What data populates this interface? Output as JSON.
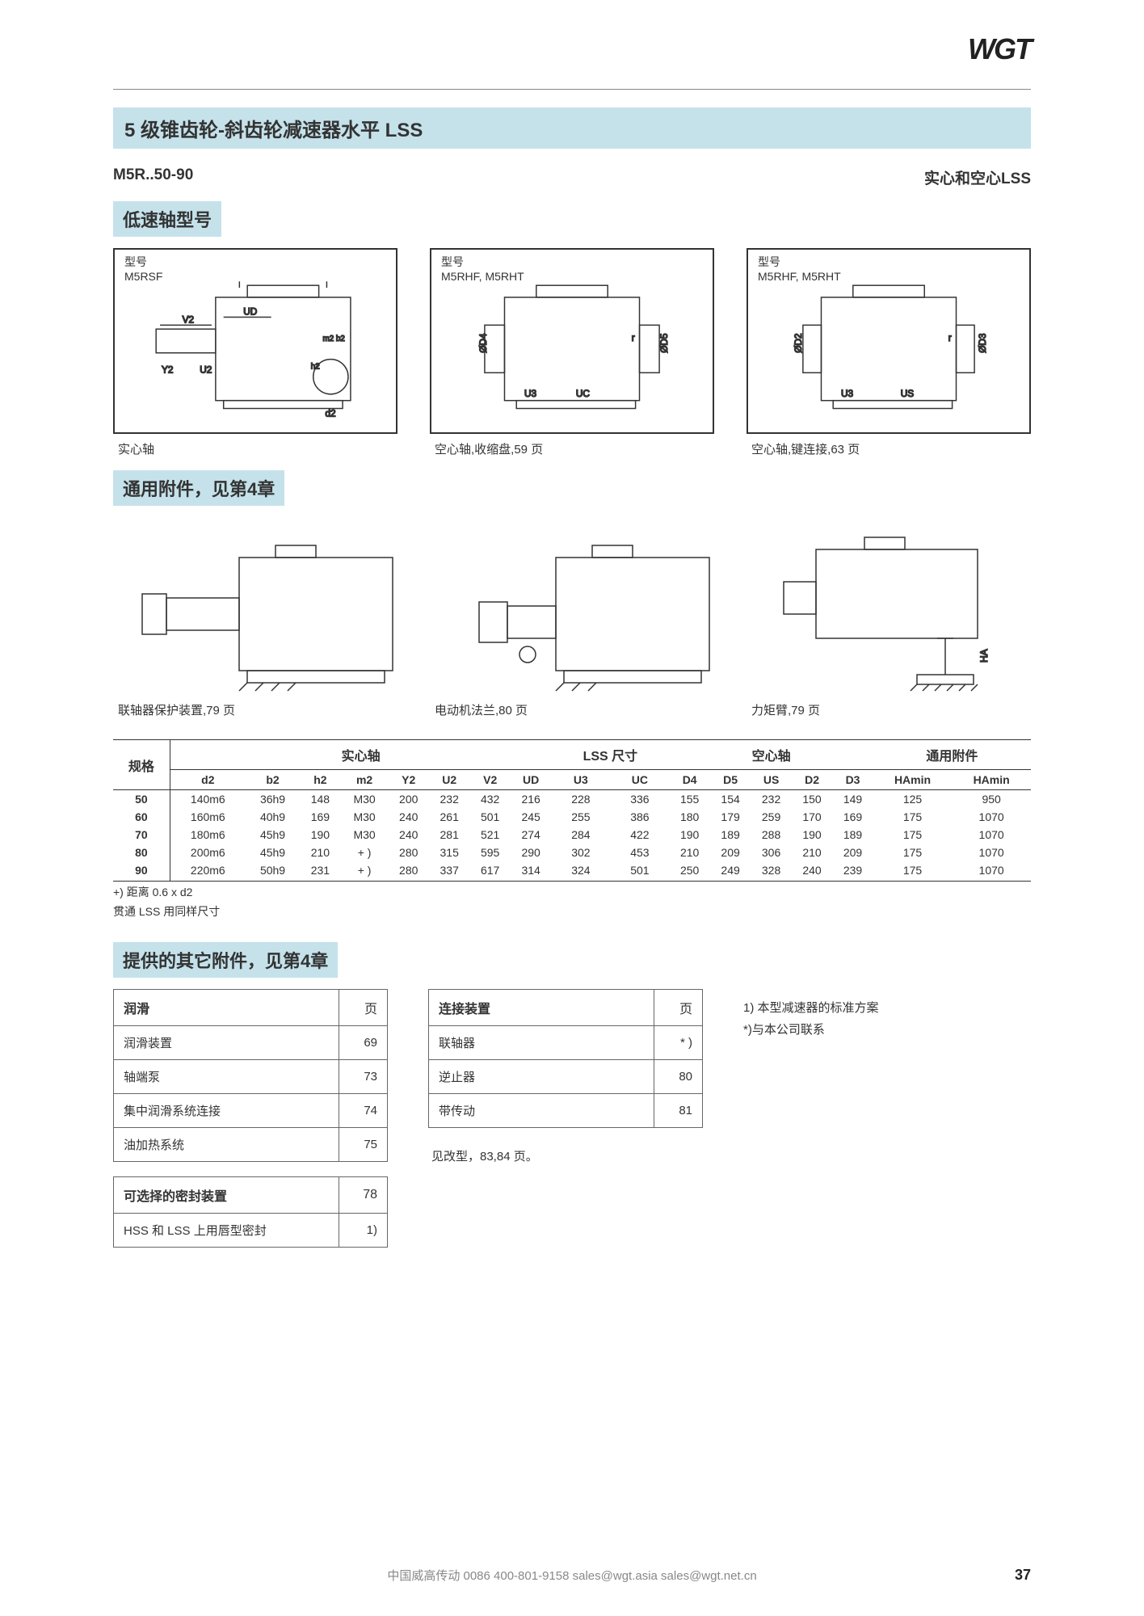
{
  "brand": "WGT",
  "page_number": "37",
  "title": "5 级锥齿轮-斜齿轮减速器水平 LSS",
  "model_left": "M5R..50-90",
  "model_right": "实心和空心LSS",
  "section1": "低速轴型号",
  "dwg_top": [
    {
      "header": "型号",
      "models": "M5RSF",
      "caption": "实心轴"
    },
    {
      "header": "型号",
      "models": "M5RHF, M5RHT",
      "caption": "空心轴,收缩盘,59 页"
    },
    {
      "header": "型号",
      "models": "M5RHF, M5RHT",
      "caption": "空心轴,键连接,63 页"
    }
  ],
  "section2": "通用附件，见第4章",
  "dwg_mid": [
    {
      "caption": "联轴器保护装置,79 页"
    },
    {
      "caption": "电动机法兰,80 页"
    },
    {
      "caption": "力矩臂,79 页"
    }
  ],
  "spec_table": {
    "group_headers": [
      "规格",
      "实心轴",
      "LSS 尺寸",
      "空心轴",
      "通用附件"
    ],
    "columns": [
      "",
      "d2",
      "b2",
      "h2",
      "m2",
      "Y2",
      "U2",
      "V2",
      "UD",
      "U3",
      "UC",
      "D4",
      "D5",
      "US",
      "D2",
      "D3",
      "HAmin",
      "HAmin"
    ],
    "rows": [
      [
        "50",
        "140m6",
        "36h9",
        "148",
        "M30",
        "200",
        "232",
        "432",
        "216",
        "228",
        "336",
        "155",
        "154",
        "232",
        "150",
        "149",
        "125",
        "950"
      ],
      [
        "60",
        "160m6",
        "40h9",
        "169",
        "M30",
        "240",
        "261",
        "501",
        "245",
        "255",
        "386",
        "180",
        "179",
        "259",
        "170",
        "169",
        "175",
        "1070"
      ],
      [
        "70",
        "180m6",
        "45h9",
        "190",
        "M30",
        "240",
        "281",
        "521",
        "274",
        "284",
        "422",
        "190",
        "189",
        "288",
        "190",
        "189",
        "175",
        "1070"
      ],
      [
        "80",
        "200m6",
        "45h9",
        "210",
        "+ )",
        "280",
        "315",
        "595",
        "290",
        "302",
        "453",
        "210",
        "209",
        "306",
        "210",
        "209",
        "175",
        "1070"
      ],
      [
        "90",
        "220m6",
        "50h9",
        "231",
        "+ )",
        "280",
        "337",
        "617",
        "314",
        "324",
        "501",
        "250",
        "249",
        "328",
        "240",
        "239",
        "175",
        "1070"
      ]
    ],
    "notes": [
      "+) 距离 0.6 x d2",
      "贯通 LSS 用同样尺寸"
    ]
  },
  "section3": "提供的其它附件，见第4章",
  "lube_table": {
    "title": "润滑",
    "page_col": "页",
    "rows": [
      [
        "润滑装置",
        "69"
      ],
      [
        "轴端泵",
        "73"
      ],
      [
        "集中润滑系统连接",
        "74"
      ],
      [
        "油加热系统",
        "75"
      ]
    ]
  },
  "seal_table": {
    "title": "可选择的密封装置",
    "page_col": "78",
    "rows": [
      [
        "HSS 和 LSS 上用唇型密封",
        "1)"
      ]
    ]
  },
  "conn_table": {
    "title": "连接装置",
    "page_col": "页",
    "rows": [
      [
        "联轴器",
        "* )"
      ],
      [
        "逆止器",
        "80"
      ],
      [
        "带传动",
        "81"
      ]
    ]
  },
  "conn_note": "见改型，83,84 页。",
  "side_notes": [
    "1) 本型减速器的标准方案",
    "*)与本公司联系"
  ],
  "footer": "中国威高传动    0086  400-801-9158     sales@wgt.asia     sales@wgt.net.cn",
  "colors": {
    "header_bg": "#c5e2eb",
    "line": "#333333",
    "text": "#333333"
  }
}
